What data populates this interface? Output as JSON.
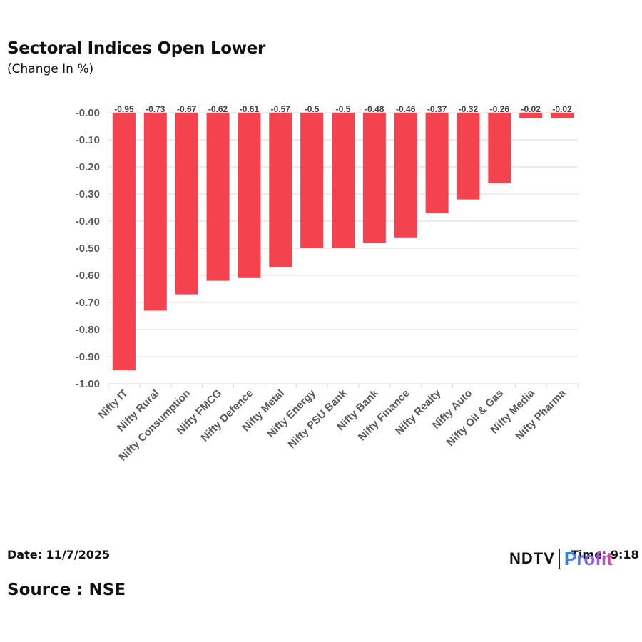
{
  "header": {
    "title": "Sectoral Indices Open Lower",
    "subtitle": "(Change In %)"
  },
  "footer": {
    "date": "Date: 11/7/2025",
    "time": "Time: 9:18",
    "source": "Source : NSE"
  },
  "logo": {
    "brand": "NDTV",
    "product": "Profit"
  },
  "colors": {
    "bar": "#f4434f",
    "grid": "#d9d9d9",
    "axis_text": "#595959",
    "label_text": "#404040"
  },
  "chart_data": {
    "type": "bar",
    "title": "Sectoral Indices Open Lower",
    "subtitle": "(Change In %)",
    "xlabel": "",
    "ylabel": "",
    "categories": [
      "Nifty IT",
      "Nifty Rural",
      "Nifty Consumption",
      "Nifty FMCG",
      "Nifty Defence",
      "Nifty Metal",
      "Nifty Energy",
      "Nifty PSU Bank",
      "Nifty Bank",
      "Nifty Finance",
      "Nifty Realty",
      "Nifty Auto",
      "Nifty Oil & Gas",
      "Nifty Media",
      "Nifty Pharma"
    ],
    "values": [
      -0.95,
      -0.73,
      -0.67,
      -0.62,
      -0.61,
      -0.57,
      -0.5,
      -0.5,
      -0.48,
      -0.46,
      -0.37,
      -0.32,
      -0.26,
      -0.02,
      -0.02
    ],
    "data_labels": [
      "-0.95",
      "-0.73",
      "-0.67",
      "-0.62",
      "-0.61",
      "-0.57",
      "-0.5",
      "-0.5",
      "-0.48",
      "-0.46",
      "-0.37",
      "-0.32",
      "-0.26",
      "-0.02",
      "-0.02"
    ],
    "y_ticks": [
      "-0.00",
      "-0.10",
      "-0.20",
      "-0.30",
      "-0.40",
      "-0.50",
      "-0.60",
      "-0.70",
      "-0.80",
      "-0.90",
      "-1.00"
    ],
    "ylim": [
      -1.0,
      0
    ],
    "grid": true,
    "legend": "none"
  }
}
